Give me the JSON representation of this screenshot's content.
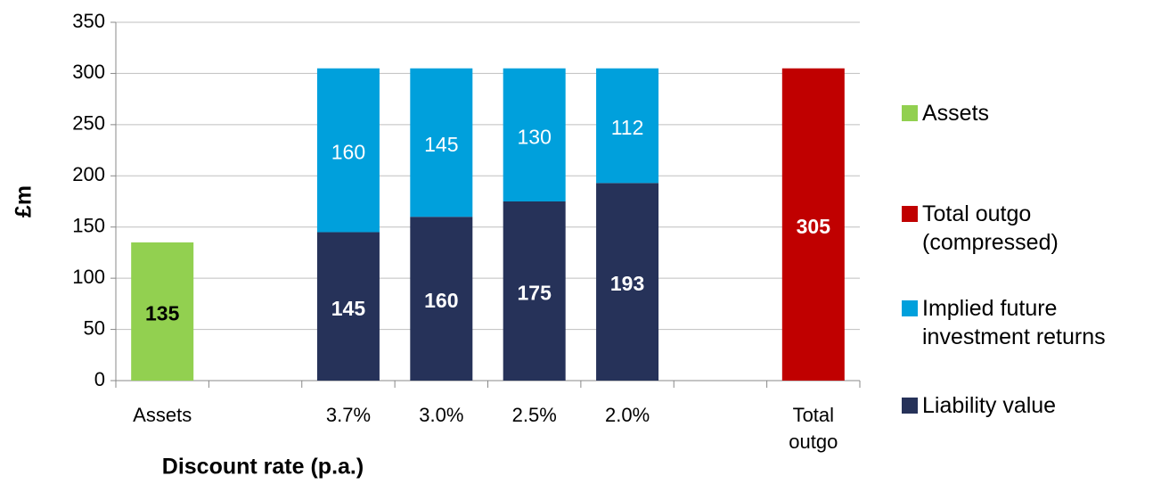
{
  "chart_data": {
    "type": "stacked_bar",
    "x_label": "Discount rate (p.a.)",
    "y_label": "£m",
    "categories": [
      "Assets",
      null,
      "3.7%",
      "3.0%",
      "2.5%",
      "2.0%",
      null,
      "Total outgo"
    ],
    "series": [
      {
        "name": "Assets",
        "color": "#92d050",
        "label_color": "#000000",
        "label_bold": true,
        "values": [
          135,
          null,
          null,
          null,
          null,
          null,
          null,
          null
        ]
      },
      {
        "name": "Total outgo (compressed)",
        "color": "#c00000",
        "label_color": "#ffffff",
        "label_bold": true,
        "values": [
          null,
          null,
          null,
          null,
          null,
          null,
          null,
          305
        ]
      },
      {
        "name": "Implied future investment returns",
        "color": "#00a0dc",
        "label_color": "#ffffff",
        "label_bold": false,
        "values": [
          null,
          null,
          160,
          145,
          130,
          112,
          null,
          null
        ]
      },
      {
        "name": "Liability value",
        "color": "#263259",
        "label_color": "#ffffff",
        "label_bold": true,
        "values": [
          null,
          null,
          145,
          160,
          175,
          193,
          null,
          null
        ]
      }
    ],
    "ylim": [
      0,
      350
    ],
    "yticks": [
      0,
      50,
      100,
      150,
      200,
      250,
      300,
      350
    ],
    "grid": true,
    "legend": "right"
  }
}
